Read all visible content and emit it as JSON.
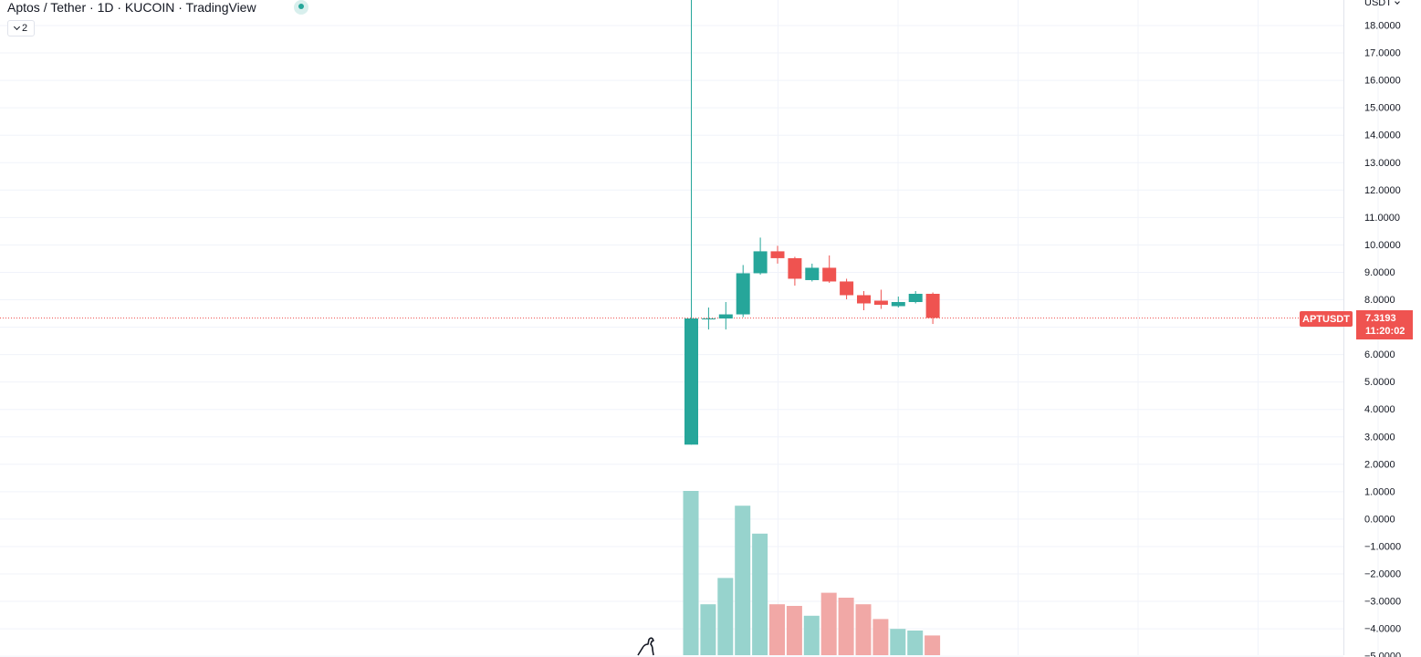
{
  "legend": {
    "title": "Aptos / Tether · 1D · KUCOIN · TradingView",
    "collapse_count": "2"
  },
  "price_axis": {
    "unit_label": "USDT",
    "tick_labels": [
      "18.0000",
      "17.0000",
      "16.0000",
      "15.0000",
      "14.0000",
      "13.0000",
      "12.0000",
      "11.0000",
      "10.0000",
      "9.0000",
      "8.0000",
      "6.0000",
      "5.0000",
      "4.0000",
      "3.0000",
      "2.0000",
      "1.0000",
      "0.0000",
      "−1.0000",
      "−2.0000",
      "−3.0000",
      "−4.0000",
      "−5.0000"
    ]
  },
  "last_price": {
    "symbol": "APTUSDT",
    "value": "7.3193",
    "countdown": "11:20:02"
  },
  "colors": {
    "up": "#26a69a",
    "down": "#ef5350",
    "up_volume": "#97d3cd",
    "down_volume": "#f1a8a6",
    "grid": "#f0f3fa"
  },
  "chart_data": {
    "type": "candlestick",
    "title": "Aptos / Tether · 1D · KUCOIN · TradingView",
    "y_axis_range": [
      -5,
      18.7
    ],
    "last_price": 7.3193,
    "candles": [
      {
        "open": 2.7,
        "high": 19.0,
        "low": 2.7,
        "close": 7.3,
        "volume": 1.0
      },
      {
        "open": 7.3,
        "high": 7.7,
        "low": 6.9,
        "close": 7.3,
        "volume": 0.31
      },
      {
        "open": 7.3,
        "high": 7.9,
        "low": 6.9,
        "close": 7.45,
        "volume": 0.47
      },
      {
        "open": 7.45,
        "high": 9.25,
        "low": 7.35,
        "close": 8.95,
        "volume": 0.91
      },
      {
        "open": 8.95,
        "high": 10.25,
        "low": 8.9,
        "close": 9.75,
        "volume": 0.74
      },
      {
        "open": 9.75,
        "high": 9.95,
        "low": 9.3,
        "close": 9.5,
        "volume": 0.31
      },
      {
        "open": 9.5,
        "high": 9.55,
        "low": 8.5,
        "close": 8.75,
        "volume": 0.3
      },
      {
        "open": 8.7,
        "high": 9.3,
        "low": 8.65,
        "close": 9.15,
        "volume": 0.24
      },
      {
        "open": 9.15,
        "high": 9.6,
        "low": 8.6,
        "close": 8.65,
        "volume": 0.38
      },
      {
        "open": 8.65,
        "high": 8.75,
        "low": 8.0,
        "close": 8.15,
        "volume": 0.35
      },
      {
        "open": 8.15,
        "high": 8.3,
        "low": 7.6,
        "close": 7.85,
        "volume": 0.31
      },
      {
        "open": 7.95,
        "high": 8.35,
        "low": 7.65,
        "close": 7.8,
        "volume": 0.22
      },
      {
        "open": 7.75,
        "high": 8.1,
        "low": 7.7,
        "close": 7.9,
        "volume": 0.16
      },
      {
        "open": 7.9,
        "high": 8.3,
        "low": 7.85,
        "close": 8.2,
        "volume": 0.15
      },
      {
        "open": 8.2,
        "high": 8.25,
        "low": 7.1,
        "close": 7.32,
        "volume": 0.12
      }
    ]
  }
}
